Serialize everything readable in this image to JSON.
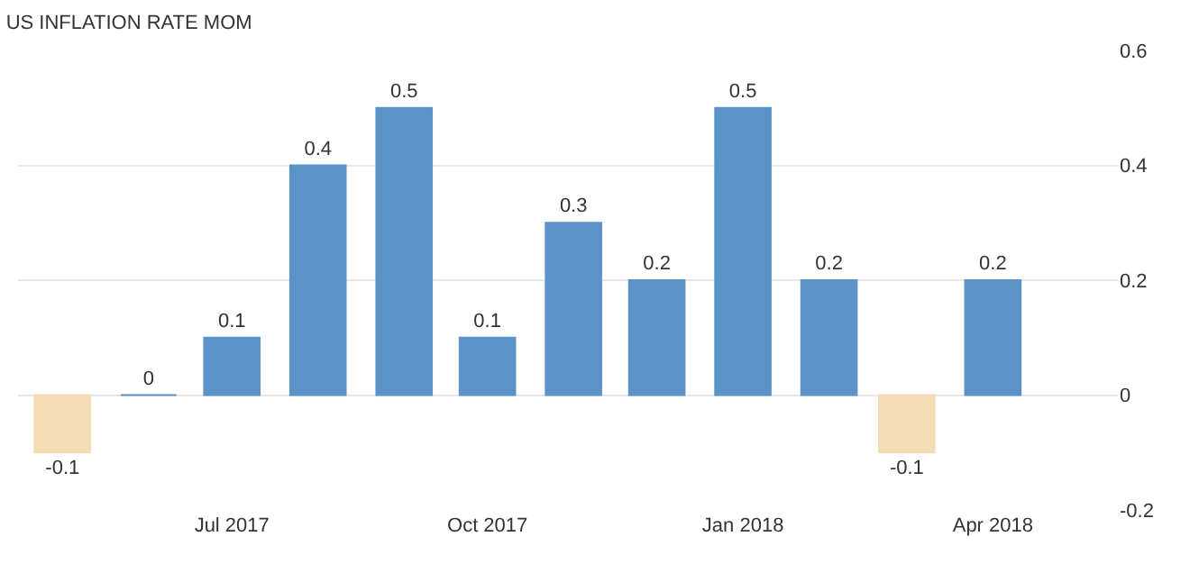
{
  "chart_data": {
    "type": "bar",
    "title": "US INFLATION RATE MOM",
    "x": [
      "2017-05",
      "2017-06",
      "2017-07",
      "2017-08",
      "2017-09",
      "2017-10",
      "2017-11",
      "2017-12",
      "2018-01",
      "2018-02",
      "2018-03",
      "2018-04"
    ],
    "values": [
      -0.1,
      0,
      0.1,
      0.4,
      0.5,
      0.1,
      0.3,
      0.2,
      0.5,
      0.2,
      -0.1,
      0.2
    ],
    "colors": [
      "#f3dcb4",
      "#5b93c8",
      "#5b93c8",
      "#5b93c8",
      "#5b93c8",
      "#5b93c8",
      "#5b93c8",
      "#5b93c8",
      "#5b93c8",
      "#5b93c8",
      "#f3dcb4",
      "#5b93c8"
    ],
    "xlim": [
      "2017-04-15",
      "2018-05-16"
    ],
    "xticks": [
      {
        "value": "2017-07",
        "label": "Jul 2017"
      },
      {
        "value": "2017-10",
        "label": "Oct 2017"
      },
      {
        "value": "2018-01",
        "label": "Jan 2018"
      },
      {
        "value": "2018-04",
        "label": "Apr 2018"
      }
    ],
    "ylim": [
      -0.2,
      0.6
    ],
    "yticks": [
      -0.2,
      0,
      0.2,
      0.4,
      0.6
    ],
    "grid": "y",
    "data_labels": true
  }
}
